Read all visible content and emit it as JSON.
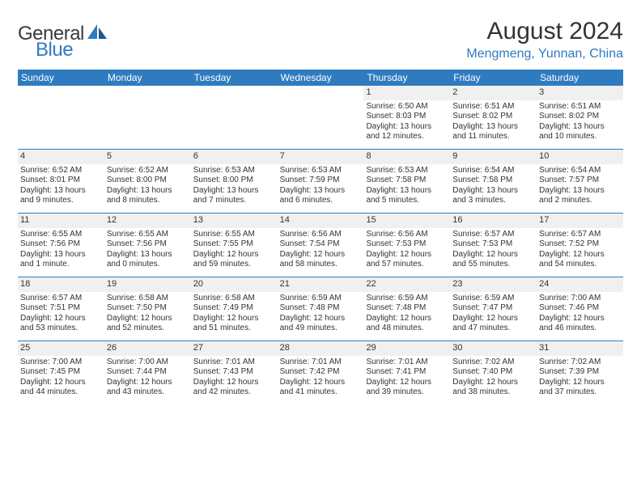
{
  "brand": {
    "word1": "General",
    "word2": "Blue"
  },
  "header": {
    "month": "August 2024",
    "location": "Mengmeng, Yunnan, China"
  },
  "colors": {
    "accent": "#2f7bbf",
    "text": "#333333",
    "row_shade": "#f0f0f0",
    "bg": "#ffffff"
  },
  "dow": [
    "Sunday",
    "Monday",
    "Tuesday",
    "Wednesday",
    "Thursday",
    "Friday",
    "Saturday"
  ],
  "weeks": [
    [
      {
        "blank": true
      },
      {
        "blank": true
      },
      {
        "blank": true
      },
      {
        "blank": true
      },
      {
        "n": "1",
        "sr": "Sunrise: 6:50 AM",
        "ss": "Sunset: 8:03 PM",
        "d1": "Daylight: 13 hours",
        "d2": "and 12 minutes."
      },
      {
        "n": "2",
        "sr": "Sunrise: 6:51 AM",
        "ss": "Sunset: 8:02 PM",
        "d1": "Daylight: 13 hours",
        "d2": "and 11 minutes."
      },
      {
        "n": "3",
        "sr": "Sunrise: 6:51 AM",
        "ss": "Sunset: 8:02 PM",
        "d1": "Daylight: 13 hours",
        "d2": "and 10 minutes."
      }
    ],
    [
      {
        "n": "4",
        "sr": "Sunrise: 6:52 AM",
        "ss": "Sunset: 8:01 PM",
        "d1": "Daylight: 13 hours",
        "d2": "and 9 minutes."
      },
      {
        "n": "5",
        "sr": "Sunrise: 6:52 AM",
        "ss": "Sunset: 8:00 PM",
        "d1": "Daylight: 13 hours",
        "d2": "and 8 minutes."
      },
      {
        "n": "6",
        "sr": "Sunrise: 6:53 AM",
        "ss": "Sunset: 8:00 PM",
        "d1": "Daylight: 13 hours",
        "d2": "and 7 minutes."
      },
      {
        "n": "7",
        "sr": "Sunrise: 6:53 AM",
        "ss": "Sunset: 7:59 PM",
        "d1": "Daylight: 13 hours",
        "d2": "and 6 minutes."
      },
      {
        "n": "8",
        "sr": "Sunrise: 6:53 AM",
        "ss": "Sunset: 7:58 PM",
        "d1": "Daylight: 13 hours",
        "d2": "and 5 minutes."
      },
      {
        "n": "9",
        "sr": "Sunrise: 6:54 AM",
        "ss": "Sunset: 7:58 PM",
        "d1": "Daylight: 13 hours",
        "d2": "and 3 minutes."
      },
      {
        "n": "10",
        "sr": "Sunrise: 6:54 AM",
        "ss": "Sunset: 7:57 PM",
        "d1": "Daylight: 13 hours",
        "d2": "and 2 minutes."
      }
    ],
    [
      {
        "n": "11",
        "sr": "Sunrise: 6:55 AM",
        "ss": "Sunset: 7:56 PM",
        "d1": "Daylight: 13 hours",
        "d2": "and 1 minute."
      },
      {
        "n": "12",
        "sr": "Sunrise: 6:55 AM",
        "ss": "Sunset: 7:56 PM",
        "d1": "Daylight: 13 hours",
        "d2": "and 0 minutes."
      },
      {
        "n": "13",
        "sr": "Sunrise: 6:55 AM",
        "ss": "Sunset: 7:55 PM",
        "d1": "Daylight: 12 hours",
        "d2": "and 59 minutes."
      },
      {
        "n": "14",
        "sr": "Sunrise: 6:56 AM",
        "ss": "Sunset: 7:54 PM",
        "d1": "Daylight: 12 hours",
        "d2": "and 58 minutes."
      },
      {
        "n": "15",
        "sr": "Sunrise: 6:56 AM",
        "ss": "Sunset: 7:53 PM",
        "d1": "Daylight: 12 hours",
        "d2": "and 57 minutes."
      },
      {
        "n": "16",
        "sr": "Sunrise: 6:57 AM",
        "ss": "Sunset: 7:53 PM",
        "d1": "Daylight: 12 hours",
        "d2": "and 55 minutes."
      },
      {
        "n": "17",
        "sr": "Sunrise: 6:57 AM",
        "ss": "Sunset: 7:52 PM",
        "d1": "Daylight: 12 hours",
        "d2": "and 54 minutes."
      }
    ],
    [
      {
        "n": "18",
        "sr": "Sunrise: 6:57 AM",
        "ss": "Sunset: 7:51 PM",
        "d1": "Daylight: 12 hours",
        "d2": "and 53 minutes."
      },
      {
        "n": "19",
        "sr": "Sunrise: 6:58 AM",
        "ss": "Sunset: 7:50 PM",
        "d1": "Daylight: 12 hours",
        "d2": "and 52 minutes."
      },
      {
        "n": "20",
        "sr": "Sunrise: 6:58 AM",
        "ss": "Sunset: 7:49 PM",
        "d1": "Daylight: 12 hours",
        "d2": "and 51 minutes."
      },
      {
        "n": "21",
        "sr": "Sunrise: 6:59 AM",
        "ss": "Sunset: 7:48 PM",
        "d1": "Daylight: 12 hours",
        "d2": "and 49 minutes."
      },
      {
        "n": "22",
        "sr": "Sunrise: 6:59 AM",
        "ss": "Sunset: 7:48 PM",
        "d1": "Daylight: 12 hours",
        "d2": "and 48 minutes."
      },
      {
        "n": "23",
        "sr": "Sunrise: 6:59 AM",
        "ss": "Sunset: 7:47 PM",
        "d1": "Daylight: 12 hours",
        "d2": "and 47 minutes."
      },
      {
        "n": "24",
        "sr": "Sunrise: 7:00 AM",
        "ss": "Sunset: 7:46 PM",
        "d1": "Daylight: 12 hours",
        "d2": "and 46 minutes."
      }
    ],
    [
      {
        "n": "25",
        "sr": "Sunrise: 7:00 AM",
        "ss": "Sunset: 7:45 PM",
        "d1": "Daylight: 12 hours",
        "d2": "and 44 minutes."
      },
      {
        "n": "26",
        "sr": "Sunrise: 7:00 AM",
        "ss": "Sunset: 7:44 PM",
        "d1": "Daylight: 12 hours",
        "d2": "and 43 minutes."
      },
      {
        "n": "27",
        "sr": "Sunrise: 7:01 AM",
        "ss": "Sunset: 7:43 PM",
        "d1": "Daylight: 12 hours",
        "d2": "and 42 minutes."
      },
      {
        "n": "28",
        "sr": "Sunrise: 7:01 AM",
        "ss": "Sunset: 7:42 PM",
        "d1": "Daylight: 12 hours",
        "d2": "and 41 minutes."
      },
      {
        "n": "29",
        "sr": "Sunrise: 7:01 AM",
        "ss": "Sunset: 7:41 PM",
        "d1": "Daylight: 12 hours",
        "d2": "and 39 minutes."
      },
      {
        "n": "30",
        "sr": "Sunrise: 7:02 AM",
        "ss": "Sunset: 7:40 PM",
        "d1": "Daylight: 12 hours",
        "d2": "and 38 minutes."
      },
      {
        "n": "31",
        "sr": "Sunrise: 7:02 AM",
        "ss": "Sunset: 7:39 PM",
        "d1": "Daylight: 12 hours",
        "d2": "and 37 minutes."
      }
    ]
  ]
}
